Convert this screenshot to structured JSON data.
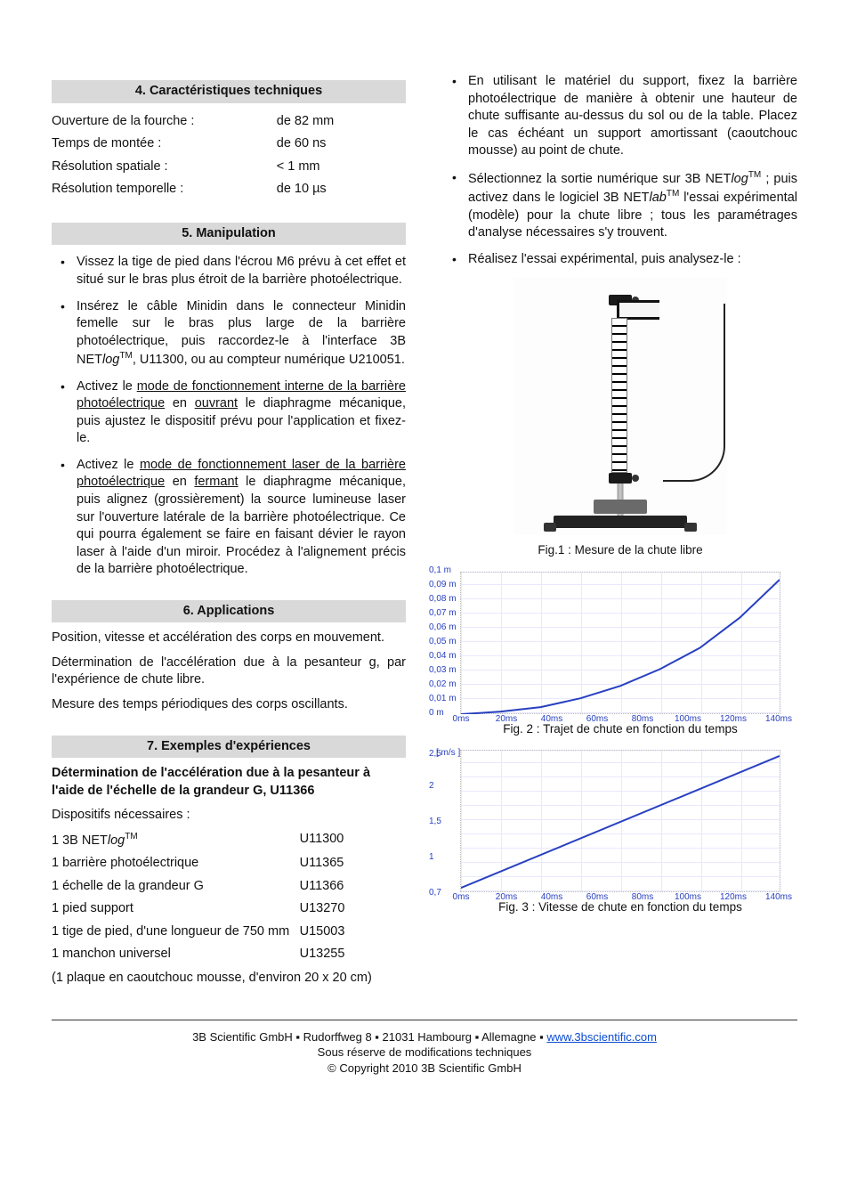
{
  "left": {
    "sec4": {
      "title": "4. Caractéristiques techniques",
      "rows": [
        {
          "label": "Ouverture de la fourche :",
          "value": "de 82 mm"
        },
        {
          "label": "Temps de montée :",
          "value": "de 60 ns"
        },
        {
          "label": "Résolution spatiale :",
          "value": "< 1 mm"
        },
        {
          "label": "Résolution temporelle :",
          "value": "de 10 µs"
        }
      ]
    },
    "sec5": {
      "title": "5. Manipulation",
      "b1": "Vissez la tige de pied dans l'écrou M6 prévu à cet effet et situé sur le bras plus étroit de la barrière photoélectrique.",
      "b2_a": "Insérez le câble Minidin dans le connecteur Minidin femelle sur le bras plus large de la barrière photoélectrique, puis raccordez-le à l'interface 3B NET",
      "b2_log": "log",
      "b2_tm": "TM",
      "b2_b": ", U11300, ou au compteur numérique U210051.",
      "b3_a": "Activez le ",
      "b3_u1": "mode de fonctionnement interne de la barrière photoélectrique",
      "b3_b": " en ",
      "b3_u2": "ouvrant",
      "b3_c": " le diaphragme mécanique, puis ajustez le dispositif prévu pour l'application et fixez-le.",
      "b4_a": "Activez le ",
      "b4_u1": "mode de fonctionnement laser de la barrière photoélectrique",
      "b4_b": " en ",
      "b4_u2": "fermant",
      "b4_c": " le diaphragme mécanique, puis alignez (grossièrement) la source lumineuse laser sur l'ouverture latérale de la barrière photoélectrique. Ce qui pourra également se faire en faisant dévier le rayon laser à l'aide d'un miroir. Procédez à l'alignement précis de la barrière photoélectrique."
    },
    "sec6": {
      "title": "6. Applications",
      "p1": "Position, vitesse et accélération des corps en mouvement.",
      "p2": "Détermination de l'accélération due à la pesanteur g, par l'expérience de chute libre.",
      "p3": "Mesure des temps périodiques des corps oscillants."
    },
    "sec7": {
      "title": "7. Exemples d'expériences",
      "subtitle": "Détermination de l'accélération due à la pesanteur à l'aide de l'échelle de la grandeur G, U11366",
      "need": "Dispositifs nécessaires :",
      "rows": [
        {
          "label_a": "1 3B NET",
          "label_log": "log",
          "label_tm": "TM",
          "label_b": "",
          "code": "U11300"
        },
        {
          "label_a": "1 barrière photoélectrique",
          "code": "U11365"
        },
        {
          "label_a": "1 échelle de la grandeur G",
          "code": "U11366"
        },
        {
          "label_a": "1 pied support",
          "code": "U13270"
        },
        {
          "label_a": "1 tige de pied, d'une longueur de 750 mm",
          "code": "U15003"
        },
        {
          "label_a": "1 manchon universel",
          "code": "U13255"
        }
      ],
      "note": "(1 plaque en caoutchouc mousse, d'environ 20 x 20 cm)"
    }
  },
  "right": {
    "b1": "En utilisant le matériel du support, fixez la barrière photoélectrique de manière à obtenir une hauteur de chute suffisante au-dessus du sol ou de la table. Placez le cas échéant un support amortissant (caoutchouc mousse) au point de chute.",
    "b2_a": "Sélectionnez la sortie numérique sur 3B NET",
    "b2_log": "log",
    "b2_tm": "TM",
    "b2_b": " ; puis activez dans le logiciel 3B NET",
    "b2_lab": "lab",
    "b2_tm2": "TM",
    "b2_c": " l'essai expérimental (modèle) pour la chute libre ; tous les paramétrages d'analyse nécessaires s'y trouvent.",
    "b3": "Réalisez l'essai expérimental, puis analysez-le :",
    "fig1": "Fig.1 : Mesure de la chute libre",
    "fig2": "Fig. 2 : Trajet de chute en fonction du temps",
    "fig3": "Fig. 3 : Vitesse de chute en fonction du temps"
  },
  "chart2": {
    "ylim": [
      0,
      0.1
    ],
    "xlim": [
      0,
      140
    ],
    "yticks": [
      "0 m",
      "0,01 m",
      "0,02 m",
      "0,03 m",
      "0,04 m",
      "0,05 m",
      "0,06 m",
      "0,07 m",
      "0,08 m",
      "0,09 m",
      "0,1 m"
    ],
    "xticks": [
      "0ms",
      "20ms",
      "40ms",
      "60ms",
      "80ms",
      "100ms",
      "120ms",
      "140ms"
    ],
    "curve_color": "#2840c0",
    "points": [
      [
        0,
        160
      ],
      [
        45,
        157
      ],
      [
        90,
        152
      ],
      [
        135,
        142
      ],
      [
        180,
        128
      ],
      [
        225,
        109
      ],
      [
        270,
        85
      ],
      [
        315,
        51
      ],
      [
        360,
        8
      ]
    ]
  },
  "chart3": {
    "unit": "[ m/s ]",
    "ylim": [
      0.7,
      2.5
    ],
    "xlim": [
      0,
      140
    ],
    "yticks": [
      "0,7",
      "1",
      "1,5",
      "2",
      "2,5"
    ],
    "ytick_pos": [
      160,
      120,
      80,
      40,
      4
    ],
    "xticks": [
      "0ms",
      "20ms",
      "40ms",
      "60ms",
      "80ms",
      "100ms",
      "120ms",
      "140ms"
    ],
    "curve_color": "#2840c0",
    "points": [
      [
        0,
        155
      ],
      [
        360,
        6
      ]
    ]
  },
  "footer": {
    "line1_a": "3B Scientific GmbH ▪ Rudorffweg 8 ▪ 21031 Hambourg ▪ Allemagne ▪ ",
    "link": "www.3bscientific.com",
    "line2": "Sous réserve de modifications techniques",
    "line3": "© Copyright 2010 3B Scientific GmbH"
  }
}
